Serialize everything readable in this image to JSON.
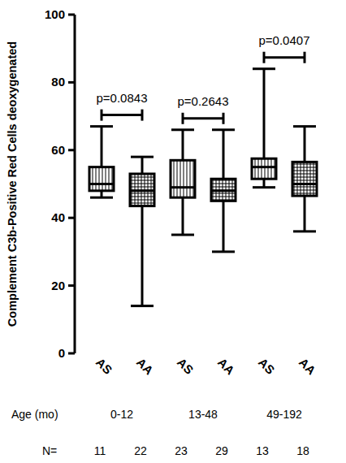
{
  "chart_data": {
    "type": "box",
    "y_label": "Complement C3b-Positive Red Cells deoxygenated",
    "categories": [
      "AS",
      "AA",
      "AS",
      "AA",
      "AS",
      "AA"
    ],
    "min": [
      46,
      14,
      35,
      30,
      49,
      36
    ],
    "q1": [
      48,
      43.5,
      46,
      45,
      51.5,
      46.5
    ],
    "median": [
      50,
      48,
      49,
      48,
      55,
      50
    ],
    "q3": [
      55,
      53,
      57,
      51.5,
      57.5,
      56.5
    ],
    "max": [
      67,
      58,
      66,
      66,
      84,
      67
    ],
    "x_label": "Age (mo)",
    "groups": [
      "0-12",
      "13-48",
      "49-192"
    ],
    "n_label": "N=",
    "n": [
      11,
      22,
      23,
      29,
      13,
      18
    ],
    "annotations": [
      {
        "text": "p=0.0843",
        "from": 0,
        "to": 1
      },
      {
        "text": "p=0.2643",
        "from": 2,
        "to": 3
      },
      {
        "text": "p=0.0407",
        "from": 4,
        "to": 5
      }
    ],
    "color": "#000000",
    "ylim": [
      0,
      100
    ],
    "yticks": [
      0,
      20,
      40,
      60,
      80,
      100
    ],
    "grid": false
  }
}
